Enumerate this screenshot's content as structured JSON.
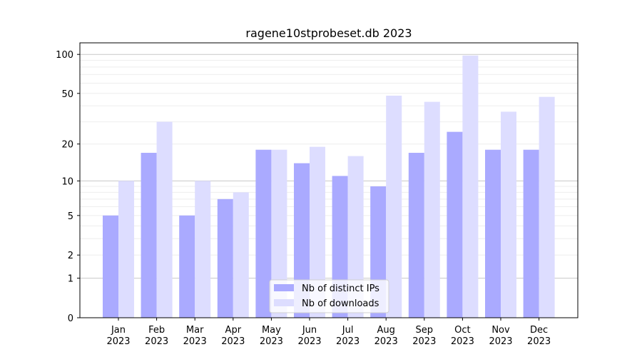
{
  "chart_data": {
    "type": "bar",
    "title": "ragene10stprobeset.db 2023",
    "xlabel": "",
    "ylabel": "",
    "y_scale": "log(1+y)",
    "ylim": [
      0,
      100
    ],
    "yticks": [
      0,
      1,
      2,
      5,
      10,
      20,
      50,
      100
    ],
    "grid": true,
    "legend_position": "bottom-center",
    "categories": [
      "Jan\n2023",
      "Feb\n2023",
      "Mar\n2023",
      "Apr\n2023",
      "May\n2023",
      "Jun\n2023",
      "Jul\n2023",
      "Aug\n2023",
      "Sep\n2023",
      "Oct\n2023",
      "Nov\n2023",
      "Dec\n2023"
    ],
    "series": [
      {
        "name": "Nb of distinct IPs",
        "color": "#aaaaff",
        "values": [
          5,
          17,
          5,
          7,
          18,
          14,
          11,
          9,
          17,
          25,
          18,
          18
        ]
      },
      {
        "name": "Nb of downloads",
        "color": "#ddddff",
        "values": [
          10,
          30,
          10,
          8,
          18,
          19,
          16,
          48,
          43,
          98,
          36,
          47
        ]
      }
    ]
  }
}
